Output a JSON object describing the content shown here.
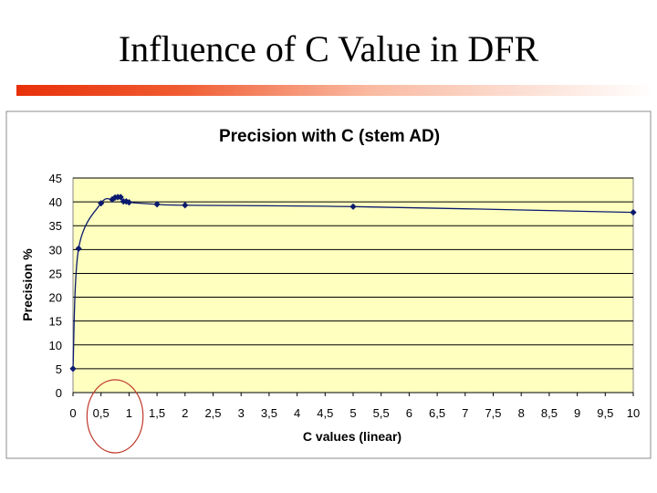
{
  "slide": {
    "title": "Influence of C Value in DFR"
  },
  "colors": {
    "title_bar": "#e8300a",
    "plot_bg": "#ffffc0",
    "series": "#0b1a6e",
    "highlight_circle": "#c0392b",
    "grid": "#000000"
  },
  "chart_data": {
    "type": "line",
    "title": "Precision with C (stem AD)",
    "xlabel": "C values (linear)",
    "ylabel": "Precision %",
    "xlim": [
      0,
      10
    ],
    "ylim": [
      0,
      45
    ],
    "x_ticks": [
      "0",
      "0,5",
      "1",
      "1,5",
      "2",
      "2,5",
      "3",
      "3,5",
      "4",
      "4,5",
      "5",
      "5,5",
      "6",
      "6,5",
      "7",
      "7,5",
      "8",
      "8,5",
      "9",
      "9,5",
      "10"
    ],
    "y_ticks": [
      "0",
      "5",
      "10",
      "15",
      "20",
      "25",
      "30",
      "35",
      "40",
      "45"
    ],
    "grid": "horizontal",
    "series": [
      {
        "marker": "diamond",
        "x": [
          0,
          0.1,
          0.5,
          0.7,
          0.75,
          0.8,
          0.85,
          0.9,
          0.95,
          1.0,
          1.5,
          2,
          5,
          10
        ],
        "y": [
          5,
          30.2,
          39.7,
          40.5,
          40.9,
          41.0,
          41.0,
          40.1,
          40.1,
          39.9,
          39.5,
          39.3,
          39.0,
          37.8
        ]
      }
    ],
    "highlight": {
      "shape": "circle",
      "x_range": [
        0.25,
        1.25
      ]
    }
  }
}
